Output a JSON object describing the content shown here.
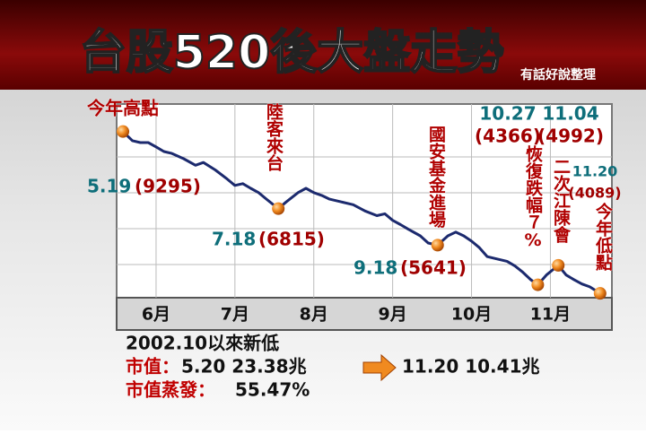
{
  "chart_data": {
    "type": "line",
    "title": "台股520後大盤走勢",
    "source": "有話好說整理",
    "xlim": [
      5.5,
      11.78
    ],
    "xticks": [
      {
        "value": 6,
        "label": "6月"
      },
      {
        "value": 7,
        "label": "7月"
      },
      {
        "value": 8,
        "label": "8月"
      },
      {
        "value": 9,
        "label": "9月"
      },
      {
        "value": 10,
        "label": "10月"
      },
      {
        "value": 11,
        "label": "11月"
      }
    ],
    "ylim": [
      3950,
      10180
    ],
    "series": [
      {
        "color": "#1c2a6e",
        "x": [
          5.58,
          5.7,
          5.8,
          5.9,
          6.0,
          6.1,
          6.2,
          6.35,
          6.5,
          6.6,
          6.75,
          6.9,
          7.0,
          7.1,
          7.2,
          7.3,
          7.4,
          7.55,
          7.65,
          7.8,
          7.9,
          8.0,
          8.1,
          8.2,
          8.35,
          8.5,
          8.65,
          8.8,
          8.9,
          9.0,
          9.1,
          9.2,
          9.35,
          9.45,
          9.57,
          9.7,
          9.8,
          9.9,
          10.0,
          10.1,
          10.2,
          10.3,
          10.45,
          10.55,
          10.65,
          10.75,
          10.84,
          10.95,
          11.1,
          11.2,
          11.3,
          11.4,
          11.5,
          11.63
        ],
        "values": [
          9295,
          9000,
          8940,
          8940,
          8800,
          8650,
          8590,
          8420,
          8210,
          8300,
          8060,
          7770,
          7560,
          7620,
          7470,
          7330,
          7120,
          6815,
          7030,
          7330,
          7470,
          7330,
          7240,
          7120,
          7030,
          6940,
          6740,
          6590,
          6650,
          6440,
          6300,
          6150,
          5940,
          5710,
          5641,
          5940,
          6060,
          5940,
          5770,
          5560,
          5270,
          5210,
          5120,
          4970,
          4770,
          4530,
          4366,
          4680,
          4992,
          4680,
          4530,
          4390,
          4300,
          4089
        ]
      }
    ],
    "annotations": [
      {
        "label": "今年高點",
        "date": "5.19",
        "value": 9295,
        "value_label": "(9295)",
        "x": 5.58
      },
      {
        "label": "陸客來台",
        "date": "7.18",
        "value": 6815,
        "value_label": "(6815)",
        "x": 7.55
      },
      {
        "label": "國安基金進場",
        "date": "9.18",
        "value": 5641,
        "value_label": "(5641)",
        "x": 9.57
      },
      {
        "label": "恢復跌幅７%",
        "date": "10.27",
        "value": 4366,
        "value_label": "(4366)",
        "x": 10.84
      },
      {
        "label": "二次江陳會",
        "date": "11.04",
        "value": 4992,
        "value_label": "(4992)",
        "x": 11.1
      },
      {
        "label": "今年低點",
        "date": "11.20",
        "value": 4089,
        "value_label": "(4089)",
        "x": 11.63
      }
    ],
    "notes": {
      "headline": "2002.10以來新低",
      "market_cap_label": "市值：",
      "before": "5.20 23.38兆",
      "after": "11.20 10.41兆",
      "evaporated_label": "市值蒸發：",
      "evaporated": "55.47%"
    }
  }
}
